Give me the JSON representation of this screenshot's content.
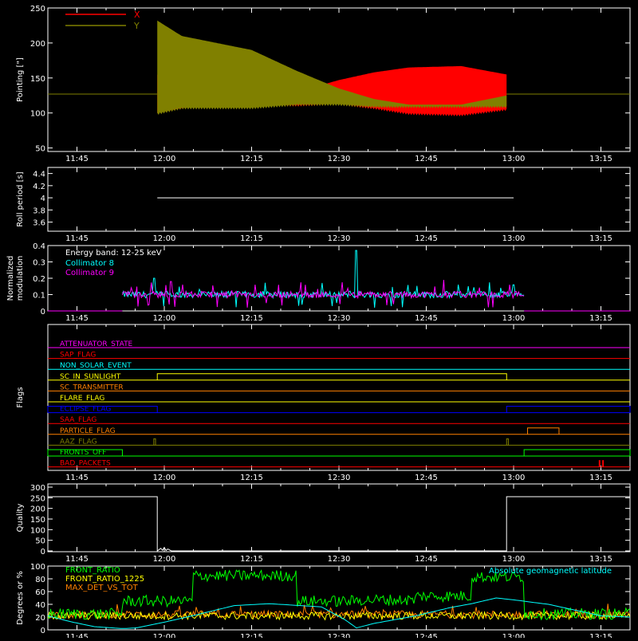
{
  "colors": {
    "background": "#000000",
    "axes": "#ffffff",
    "red": "#ff0000",
    "olive": "#808000",
    "cyan": "#00ffff",
    "magenta": "#ff00ff",
    "orange": "#ff8000",
    "yellow": "#ffff00",
    "blue": "#0000ff",
    "green": "#00ff00",
    "white": "#ffffff"
  },
  "chart_data": [
    {
      "id": "pointing",
      "type": "area",
      "ylabel": "Pointing [\"]",
      "ylim": [
        45,
        250
      ],
      "yticks": [
        50,
        100,
        150,
        200,
        250
      ],
      "xlim": [
        11.6667,
        13.3333
      ],
      "xticks": [
        "11:45",
        "12:00",
        "12:15",
        "12:30",
        "12:45",
        "13:00",
        "13:15"
      ],
      "legend": [
        "X",
        "Y"
      ],
      "legend_placement": "top-left",
      "series": [
        {
          "name": "X",
          "color": "#ff0000",
          "baseline": 127,
          "active_from": 11.98,
          "active_to": 12.98,
          "envelope_time": [
            11.98,
            12.05,
            12.15,
            12.25,
            12.38,
            12.5,
            12.6,
            12.7,
            12.85,
            12.98
          ],
          "envelope_upper": [
            100,
            107,
            112,
            118,
            130,
            147,
            158,
            165,
            167,
            155
          ],
          "envelope_lower": [
            155,
            130,
            118,
            112,
            112,
            114,
            108,
            100,
            98,
            106
          ]
        },
        {
          "name": "Y",
          "color": "#808000",
          "baseline": 127,
          "active_from": 11.98,
          "active_to": 12.98,
          "envelope_time": [
            11.98,
            12.05,
            12.15,
            12.25,
            12.38,
            12.5,
            12.6,
            12.7,
            12.85,
            12.98
          ],
          "envelope_upper": [
            232,
            210,
            200,
            190,
            160,
            135,
            120,
            112,
            112,
            125
          ],
          "envelope_lower": [
            100,
            108,
            108,
            108,
            113,
            113,
            110,
            110,
            110,
            110
          ]
        }
      ]
    },
    {
      "id": "roll",
      "type": "line",
      "ylabel": "Roll period [s]",
      "ylim": [
        3.45,
        4.5
      ],
      "yticks": [
        3.6,
        3.8,
        4.0,
        4.2,
        4.4
      ],
      "xticks": [
        "11:45",
        "12:00",
        "12:15",
        "12:30",
        "12:45",
        "13:00",
        "13:15"
      ],
      "series": [
        {
          "name": "",
          "color": "#ffffff",
          "value": 4.0,
          "from": 11.98,
          "to": 13.0
        }
      ]
    },
    {
      "id": "modulation",
      "type": "line",
      "ylabel": "Normalized modulation",
      "ylim": [
        0,
        0.4
      ],
      "yticks": [
        0.0,
        0.1,
        0.2,
        0.3,
        0.4
      ],
      "xticks": [
        "11:45",
        "12:00",
        "12:15",
        "12:30",
        "12:45",
        "13:00",
        "13:15"
      ],
      "annotation": "Energy band: 12-25 keV",
      "legend_placement": "top-left",
      "series": [
        {
          "name": "Collimator 8",
          "color": "#00ffff",
          "active_from": 11.88,
          "active_to": 13.03,
          "typical": 0.1,
          "peaks": [
            [
              12.55,
              0.37
            ],
            [
              11.97,
              0.2
            ],
            [
              13.0,
              0.16
            ]
          ]
        },
        {
          "name": "Collimator 9",
          "color": "#ff00ff",
          "active_from": 11.88,
          "active_to": 13.03,
          "typical": 0.1,
          "peaks": [
            [
              12.8,
              0.19
            ],
            [
              12.02,
              0.18
            ]
          ]
        }
      ]
    },
    {
      "id": "flags",
      "type": "line",
      "ylabel": "Flags",
      "xticks": [
        "11:45",
        "12:00",
        "12:15",
        "12:30",
        "12:45",
        "13:00",
        "13:15"
      ],
      "series": [
        {
          "name": "ATTENUATOR_STATE",
          "color": "#ff00ff",
          "segments": []
        },
        {
          "name": "SAP_FLAG",
          "color": "#ff0000",
          "segments": []
        },
        {
          "name": "NON_SOLAR_EVENT",
          "color": "#00ffff",
          "segments": []
        },
        {
          "name": "SC_IN_SUNLIGHT",
          "color": "#ffff00",
          "segments": [
            [
              11.98,
              12.98
            ]
          ]
        },
        {
          "name": "SC_TRANSMITTER",
          "color": "#ff8000",
          "segments": []
        },
        {
          "name": "FLARE_FLAG",
          "color": "#ffff00",
          "segments": []
        },
        {
          "name": "ECLIPSE_FLAG",
          "color": "#0000ff",
          "segments": [
            [
              11.6667,
              11.98
            ],
            [
              12.98,
              13.3333
            ]
          ]
        },
        {
          "name": "SAA_FLAG",
          "color": "#ff0000",
          "segments": []
        },
        {
          "name": "PARTICLE_FLAG",
          "color": "#ff8000",
          "segments": [
            [
              13.04,
              13.13
            ]
          ]
        },
        {
          "name": "AAZ_FLAG",
          "color": "#808000",
          "segments": [
            [
              11.97,
              11.975
            ],
            [
              12.98,
              12.985
            ]
          ]
        },
        {
          "name": "FRONTS_OFF",
          "color": "#00ff00",
          "segments": [
            [
              11.6667,
              11.88
            ],
            [
              13.03,
              13.3333
            ]
          ]
        },
        {
          "name": "BAD_PACKETS",
          "color": "#ff0000",
          "segments": [
            [
              13.245,
              13.247
            ],
            [
              13.255,
              13.257
            ]
          ]
        }
      ]
    },
    {
      "id": "quality",
      "type": "line",
      "ylabel": "Quality",
      "ylim": [
        0,
        300
      ],
      "yticks": [
        0,
        50,
        100,
        150,
        200,
        250,
        300
      ],
      "xticks": [
        "11:45",
        "12:00",
        "12:15",
        "12:30",
        "12:45",
        "13:00",
        "13:15"
      ],
      "series": [
        {
          "name": "",
          "color": "#ffffff",
          "x": [
            11.6667,
            11.98,
            11.98,
            11.99,
            11.995,
            12.0,
            12.005,
            12.01,
            12.02,
            12.98,
            12.98,
            13.3333
          ],
          "values": [
            255,
            255,
            0,
            12,
            3,
            16,
            2,
            9,
            0,
            0,
            255,
            255
          ]
        }
      ]
    },
    {
      "id": "ratios",
      "type": "line",
      "ylabel": "Degrees or %",
      "ylim": [
        0,
        100
      ],
      "yticks": [
        0,
        20,
        40,
        60,
        80,
        100
      ],
      "xticks": [
        "11:45",
        "12:00",
        "12:15",
        "12:30",
        "12:45",
        "13:00",
        "13:15"
      ],
      "legend_placement": "top-left",
      "series": [
        {
          "name": "FRONT_RATIO",
          "color": "#00ff00",
          "levels": [
            [
              11.6667,
              11.88,
              25
            ],
            [
              11.88,
              12.08,
              45
            ],
            [
              12.08,
              12.38,
              85
            ],
            [
              12.38,
              12.55,
              45
            ],
            [
              12.55,
              12.72,
              47
            ],
            [
              12.72,
              12.88,
              53
            ],
            [
              12.88,
              13.03,
              83
            ],
            [
              13.03,
              13.3333,
              25
            ]
          ]
        },
        {
          "name": "FRONT_RATIO_1225",
          "color": "#ffff00",
          "levels": [
            [
              11.6667,
              13.3333,
              22
            ]
          ]
        },
        {
          "name": "MAX_DET_VS_TOT",
          "color": "#ff8000",
          "levels": [
            [
              11.6667,
              13.3333,
              24
            ]
          ]
        },
        {
          "name": "Absolute geomagnetic latitude",
          "color": "#00ffff",
          "x": [
            11.6667,
            11.73,
            11.8,
            11.88,
            11.92,
            12.0,
            12.08,
            12.2,
            12.3,
            12.45,
            12.52,
            12.55,
            12.6,
            12.72,
            12.82,
            12.88,
            12.95,
            13.0,
            13.1,
            13.2,
            13.25,
            13.3333
          ],
          "values": [
            22,
            13,
            5,
            2,
            3,
            12,
            22,
            38,
            41,
            36,
            15,
            3,
            10,
            22,
            35,
            41,
            50,
            47,
            40,
            28,
            22,
            20
          ]
        }
      ]
    }
  ]
}
